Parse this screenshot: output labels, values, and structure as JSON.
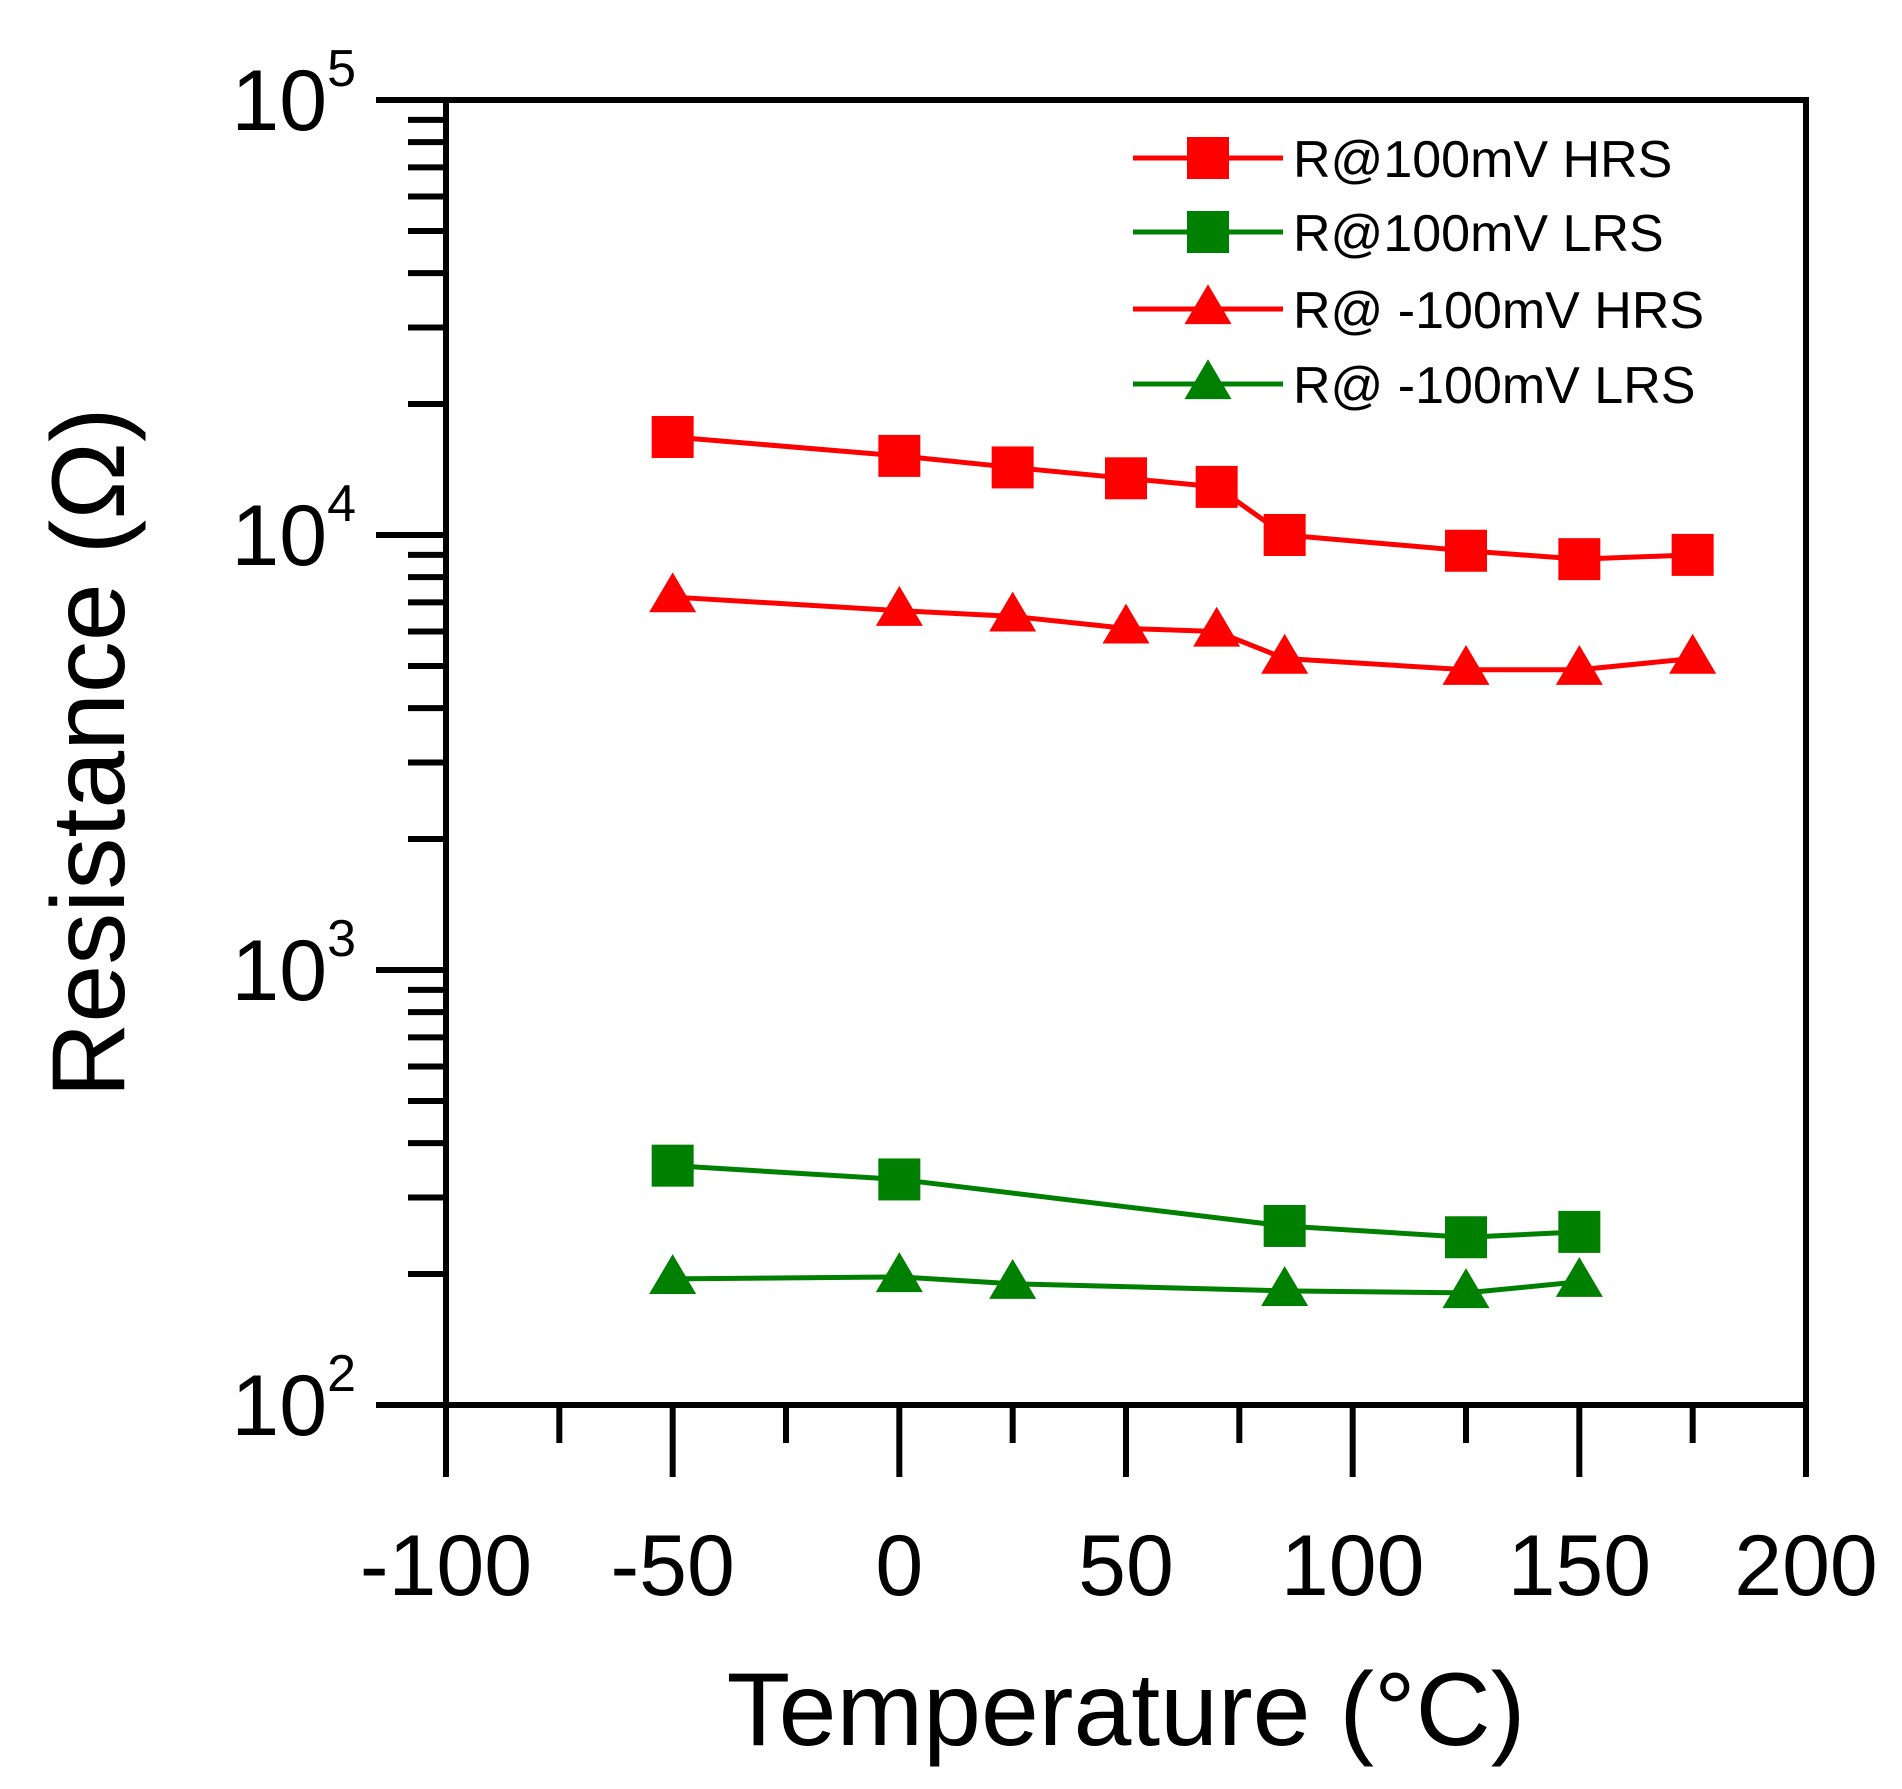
{
  "chart_data": {
    "type": "line",
    "xlabel": "Temperature (°C)",
    "ylabel": "Resistance (Ω)",
    "xlim": [
      -100,
      200
    ],
    "ylim": [
      100,
      100000
    ],
    "yscale": "log",
    "x_ticks": [
      -100,
      -50,
      0,
      50,
      100,
      150,
      200
    ],
    "x_tick_labels": [
      "-100",
      "-50",
      "0",
      "50",
      "100",
      "150",
      "200"
    ],
    "y_ticks": [
      {
        "value": 100,
        "base": "10",
        "exponent": "2"
      },
      {
        "value": 1000,
        "base": "10",
        "exponent": "3"
      },
      {
        "value": 10000,
        "base": "10",
        "exponent": "4"
      },
      {
        "value": 100000,
        "base": "10",
        "exponent": "5"
      }
    ],
    "legend_position": "top-right",
    "series": [
      {
        "name": "R@100mV HRS",
        "color": "#ff0000",
        "marker": "square",
        "x": [
          -50,
          0,
          25,
          50,
          70,
          85,
          125,
          150,
          175
        ],
        "y": [
          16800,
          15200,
          14300,
          13500,
          12900,
          10000,
          9200,
          8800,
          9000
        ]
      },
      {
        "name": "R@100mV LRS",
        "color": "#008000",
        "marker": "square",
        "x": [
          -50,
          0,
          85,
          125,
          150
        ],
        "y": [
          355,
          330,
          258,
          243,
          250
        ]
      },
      {
        "name": "R@ -100mV HRS",
        "color": "#ff0000",
        "marker": "triangle",
        "x": [
          -50,
          0,
          25,
          50,
          70,
          85,
          125,
          150,
          175
        ],
        "y": [
          7200,
          6700,
          6500,
          6100,
          6000,
          5200,
          4900,
          4900,
          5200
        ]
      },
      {
        "name": "R@ -100mV LRS",
        "color": "#008000",
        "marker": "triangle",
        "x": [
          -50,
          0,
          25,
          85,
          125,
          150
        ],
        "y": [
          195,
          197,
          190,
          183,
          181,
          192
        ]
      }
    ]
  }
}
